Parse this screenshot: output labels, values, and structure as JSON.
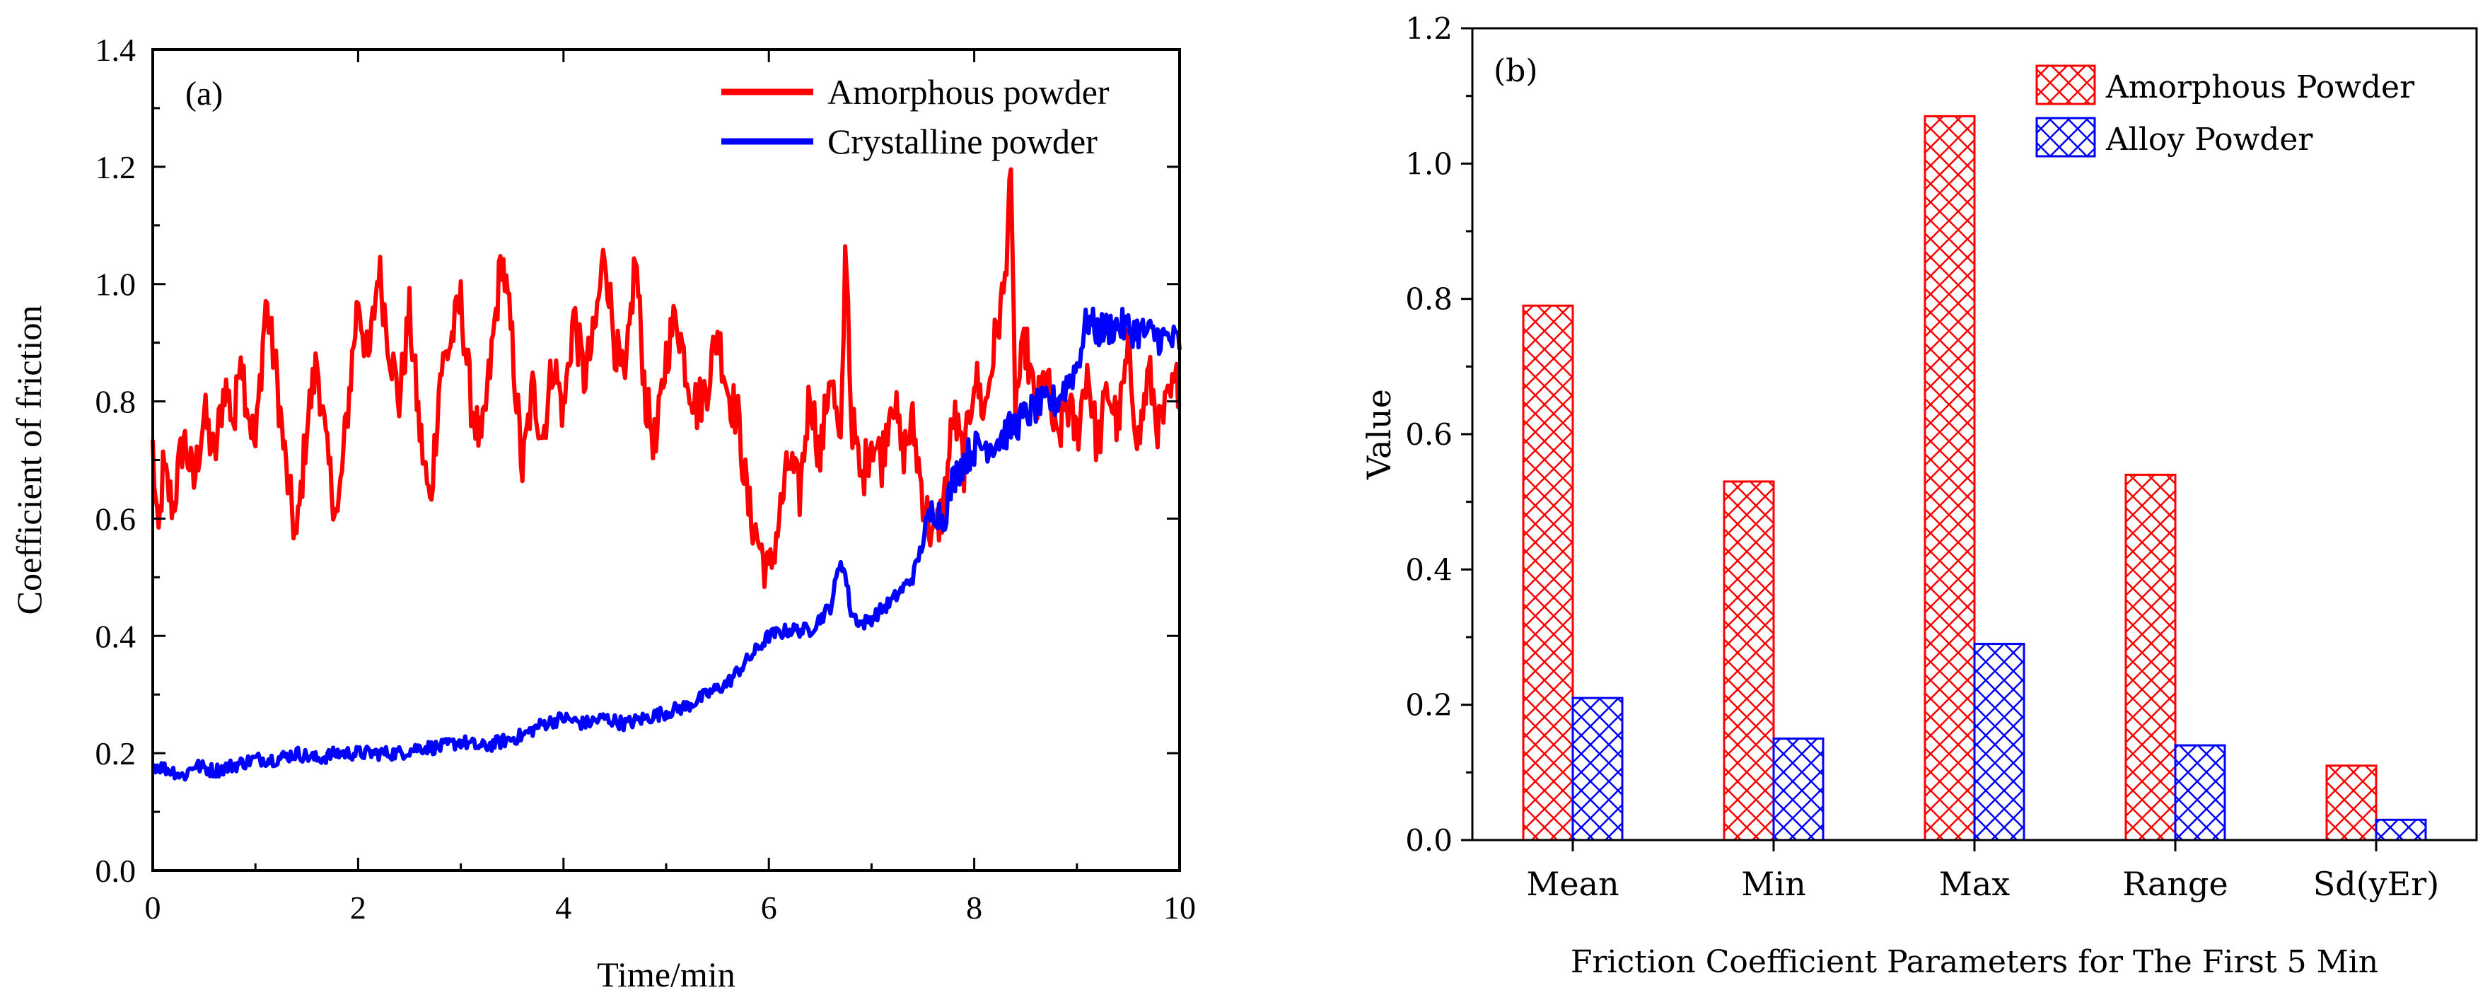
{
  "chart_data": [
    {
      "type": "line",
      "panel_label": "(a)",
      "title": "",
      "xlabel": "Time/min",
      "ylabel": "Coefficient of friction",
      "xlim": [
        0,
        10
      ],
      "ylim": [
        0,
        1.4
      ],
      "xticks": [
        0,
        2,
        4,
        6,
        8,
        10
      ],
      "xtick_labels": [
        "0",
        "2",
        "4",
        "6",
        "8",
        "10"
      ],
      "yticks": [
        0.0,
        0.2,
        0.4,
        0.6,
        0.8,
        1.0,
        1.2,
        1.4
      ],
      "ytick_labels": [
        "0.0",
        "0.2",
        "0.4",
        "0.6",
        "0.8",
        "1.0",
        "1.2",
        "1.4"
      ],
      "legend_position": "top-right",
      "series": [
        {
          "name": "Amorphous powder",
          "color": "#ff0000",
          "x": [
            0,
            0.05,
            0.1,
            0.2,
            0.3,
            0.4,
            0.5,
            0.6,
            0.7,
            0.8,
            0.85,
            0.9,
            1.0,
            1.1,
            1.2,
            1.3,
            1.4,
            1.5,
            1.6,
            1.7,
            1.8,
            1.9,
            2.0,
            2.1,
            2.2,
            2.3,
            2.4,
            2.5,
            2.6,
            2.7,
            2.8,
            2.9,
            3.0,
            3.1,
            3.2,
            3.3,
            3.4,
            3.5,
            3.6,
            3.7,
            3.8,
            3.9,
            4.0,
            4.1,
            4.2,
            4.3,
            4.4,
            4.5,
            4.6,
            4.7,
            4.8,
            4.9,
            5.0,
            5.1,
            5.2,
            5.3,
            5.4,
            5.5,
            5.6,
            5.7,
            5.8,
            5.9,
            6.0,
            6.1,
            6.2,
            6.3,
            6.4,
            6.5,
            6.6,
            6.7,
            6.75,
            6.8,
            6.9,
            7.0,
            7.1,
            7.2,
            7.3,
            7.4,
            7.5,
            7.6,
            7.7,
            7.8,
            7.9,
            8.0,
            8.1,
            8.2,
            8.3,
            8.35,
            8.4,
            8.5,
            8.6,
            8.7,
            8.8,
            8.9,
            9.0,
            9.1,
            9.2,
            9.3,
            9.4,
            9.5,
            9.6,
            9.7,
            9.8,
            9.9,
            10.0
          ],
          "y": [
            0.72,
            0.55,
            0.68,
            0.62,
            0.74,
            0.66,
            0.78,
            0.7,
            0.83,
            0.76,
            0.91,
            0.82,
            0.72,
            0.97,
            0.85,
            0.68,
            0.56,
            0.76,
            0.87,
            0.7,
            0.6,
            0.79,
            0.98,
            0.86,
            1.03,
            0.9,
            0.8,
            0.95,
            0.75,
            0.62,
            0.85,
            0.9,
            0.97,
            0.8,
            0.72,
            0.88,
            1.05,
            0.9,
            0.68,
            0.82,
            0.74,
            0.87,
            0.78,
            0.95,
            0.84,
            0.91,
            1.06,
            0.9,
            0.82,
            1.05,
            0.8,
            0.72,
            0.88,
            0.95,
            0.85,
            0.79,
            0.83,
            0.92,
            0.82,
            0.77,
            0.62,
            0.56,
            0.5,
            0.6,
            0.7,
            0.64,
            0.82,
            0.7,
            0.86,
            0.7,
            1.1,
            0.78,
            0.66,
            0.74,
            0.7,
            0.82,
            0.71,
            0.76,
            0.64,
            0.56,
            0.62,
            0.78,
            0.69,
            0.85,
            0.78,
            0.9,
            1.0,
            1.21,
            0.8,
            0.9,
            0.78,
            0.85,
            0.72,
            0.8,
            0.74,
            0.86,
            0.72,
            0.82,
            0.76,
            0.88,
            0.73,
            0.85,
            0.75,
            0.8,
            0.84
          ]
        },
        {
          "name": "Crystalline powder",
          "color": "#0000ff",
          "x": [
            0,
            0.2,
            0.3,
            0.4,
            0.6,
            0.8,
            1.0,
            1.2,
            1.4,
            1.6,
            1.8,
            2.0,
            2.2,
            2.4,
            2.6,
            2.8,
            3.0,
            3.2,
            3.4,
            3.6,
            3.8,
            4.0,
            4.2,
            4.4,
            4.6,
            4.8,
            5.0,
            5.2,
            5.4,
            5.6,
            5.8,
            5.9,
            6.0,
            6.2,
            6.4,
            6.6,
            6.7,
            6.75,
            6.8,
            6.9,
            7.0,
            7.2,
            7.4,
            7.5,
            7.6,
            7.7,
            7.8,
            7.9,
            8.0,
            8.2,
            8.4,
            8.6,
            8.8,
            9.0,
            9.1,
            9.2,
            9.4,
            9.6,
            9.8,
            10.0
          ],
          "y": [
            0.18,
            0.17,
            0.16,
            0.18,
            0.17,
            0.18,
            0.19,
            0.19,
            0.2,
            0.19,
            0.2,
            0.2,
            0.2,
            0.2,
            0.21,
            0.21,
            0.22,
            0.21,
            0.22,
            0.23,
            0.25,
            0.26,
            0.25,
            0.26,
            0.25,
            0.26,
            0.27,
            0.28,
            0.3,
            0.32,
            0.36,
            0.38,
            0.4,
            0.41,
            0.41,
            0.45,
            0.53,
            0.5,
            0.44,
            0.42,
            0.43,
            0.46,
            0.5,
            0.56,
            0.62,
            0.6,
            0.67,
            0.7,
            0.72,
            0.73,
            0.76,
            0.79,
            0.8,
            0.86,
            0.94,
            0.92,
            0.93,
            0.92,
            0.91,
            0.9
          ]
        }
      ]
    },
    {
      "type": "bar",
      "panel_label": "(b)",
      "title": "",
      "xlabel": "Friction Coefficient Parameters for The First 5 Min",
      "ylabel": "Value",
      "ylim": [
        0,
        1.2
      ],
      "yticks": [
        0.0,
        0.2,
        0.4,
        0.6,
        0.8,
        1.0,
        1.2
      ],
      "ytick_labels": [
        "0.0",
        "0.2",
        "0.4",
        "0.6",
        "0.8",
        "1.0",
        "1.2"
      ],
      "categories": [
        "Mean",
        "Min",
        "Max",
        "Range",
        "Sd(yEr)"
      ],
      "legend_position": "top-right",
      "series": [
        {
          "name": "Amorphous Powder",
          "color": "#ff0000",
          "values": [
            0.79,
            0.53,
            1.07,
            0.54,
            0.11
          ]
        },
        {
          "name": "Alloy Powder",
          "color": "#0000ff",
          "values": [
            0.21,
            0.15,
            0.29,
            0.14,
            0.03
          ]
        }
      ]
    }
  ]
}
